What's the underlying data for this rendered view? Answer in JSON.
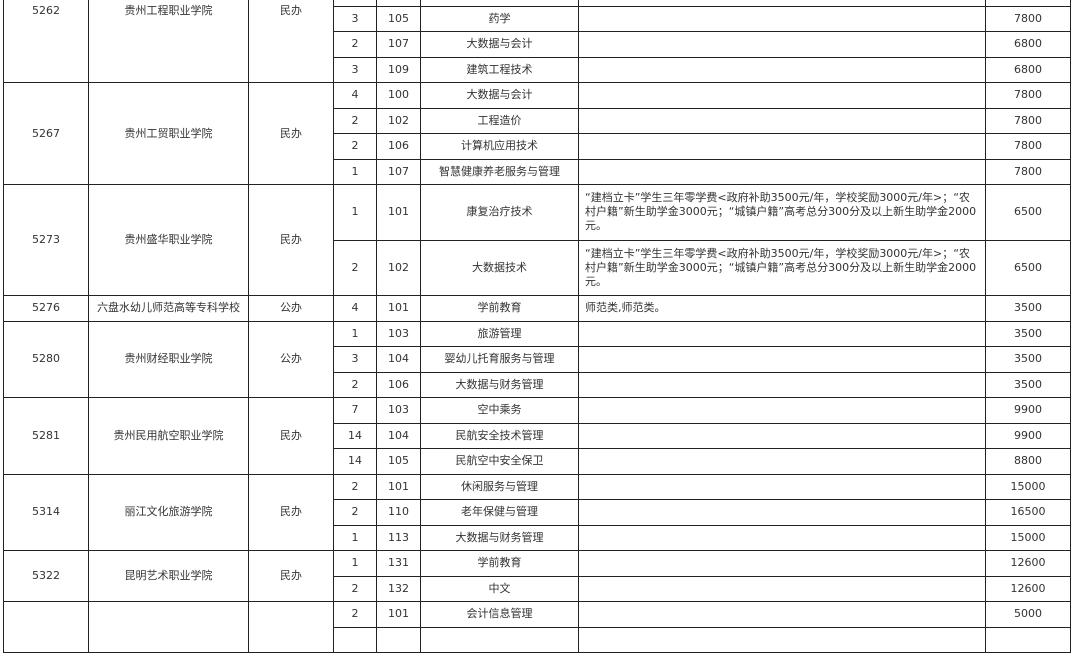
{
  "groups": [
    {
      "code": "5262",
      "name": "贵州工程职业学院",
      "type": "民办",
      "rows": [
        {
          "count": "3",
          "major_code": "105",
          "major": "药学",
          "note": "",
          "fee": "7800"
        },
        {
          "count": "2",
          "major_code": "107",
          "major": "大数据与会计",
          "note": "",
          "fee": "6800"
        },
        {
          "count": "3",
          "major_code": "109",
          "major": "建筑工程技术",
          "note": "",
          "fee": "6800"
        }
      ]
    },
    {
      "code": "5267",
      "name": "贵州工贸职业学院",
      "type": "民办",
      "rows": [
        {
          "count": "4",
          "major_code": "100",
          "major": "大数据与会计",
          "note": "",
          "fee": "7800"
        },
        {
          "count": "2",
          "major_code": "102",
          "major": "工程造价",
          "note": "",
          "fee": "7800"
        },
        {
          "count": "2",
          "major_code": "106",
          "major": "计算机应用技术",
          "note": "",
          "fee": "7800"
        },
        {
          "count": "1",
          "major_code": "107",
          "major": "智慧健康养老服务与管理",
          "note": "",
          "fee": "7800"
        }
      ]
    },
    {
      "code": "5273",
      "name": "贵州盛华职业学院",
      "type": "民办",
      "rows": [
        {
          "count": "1",
          "major_code": "101",
          "major": "康复治疗技术",
          "note": "“建档立卡”学生三年零学费<政府补助3500元/年，学校奖励3000元/年>；“农村户籍”新生助学金3000元；“城镇户籍”高考总分300分及以上新生助学金2000元。",
          "fee": "6500"
        },
        {
          "count": "2",
          "major_code": "102",
          "major": "大数据技术",
          "note": "“建档立卡”学生三年零学费<政府补助3500元/年，学校奖励3000元/年>；“农村户籍”新生助学金3000元；“城镇户籍”高考总分300分及以上新生助学金2000元。",
          "fee": "6500"
        }
      ]
    },
    {
      "code": "5276",
      "name": "六盘水幼儿师范高等专科学校",
      "type": "公办",
      "rows": [
        {
          "count": "4",
          "major_code": "101",
          "major": "学前教育",
          "note": "师范类,师范类。",
          "fee": "3500"
        }
      ]
    },
    {
      "code": "5280",
      "name": "贵州财经职业学院",
      "type": "公办",
      "rows": [
        {
          "count": "1",
          "major_code": "103",
          "major": "旅游管理",
          "note": "",
          "fee": "3500"
        },
        {
          "count": "3",
          "major_code": "104",
          "major": "婴幼儿托育服务与管理",
          "note": "",
          "fee": "3500"
        },
        {
          "count": "2",
          "major_code": "106",
          "major": "大数据与财务管理",
          "note": "",
          "fee": "3500"
        }
      ]
    },
    {
      "code": "5281",
      "name": "贵州民用航空职业学院",
      "type": "民办",
      "rows": [
        {
          "count": "7",
          "major_code": "103",
          "major": "空中乘务",
          "note": "",
          "fee": "9900"
        },
        {
          "count": "14",
          "major_code": "104",
          "major": "民航安全技术管理",
          "note": "",
          "fee": "9900"
        },
        {
          "count": "14",
          "major_code": "105",
          "major": "民航空中安全保卫",
          "note": "",
          "fee": "8800"
        }
      ]
    },
    {
      "code": "5314",
      "name": "丽江文化旅游学院",
      "type": "民办",
      "rows": [
        {
          "count": "2",
          "major_code": "101",
          "major": "休闲服务与管理",
          "note": "",
          "fee": "15000"
        },
        {
          "count": "2",
          "major_code": "110",
          "major": "老年保健与管理",
          "note": "",
          "fee": "16500"
        },
        {
          "count": "1",
          "major_code": "113",
          "major": "大数据与财务管理",
          "note": "",
          "fee": "15000"
        }
      ]
    },
    {
      "code": "5322",
      "name": "昆明艺术职业学院",
      "type": "民办",
      "rows": [
        {
          "count": "1",
          "major_code": "131",
          "major": "学前教育",
          "note": "",
          "fee": "12600"
        },
        {
          "count": "2",
          "major_code": "132",
          "major": "中文",
          "note": "",
          "fee": "12600"
        }
      ]
    },
    {
      "code": "",
      "name": "",
      "type": "",
      "rows": [
        {
          "count": "2",
          "major_code": "101",
          "major": "会计信息管理",
          "note": "",
          "fee": "5000"
        }
      ]
    }
  ]
}
